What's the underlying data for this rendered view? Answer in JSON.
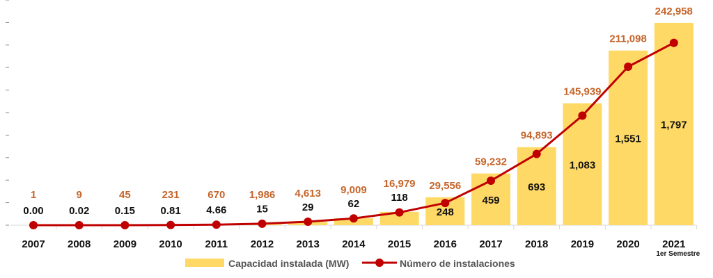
{
  "chart_data": {
    "type": "bar+line",
    "categories": [
      "2007",
      "2008",
      "2009",
      "2010",
      "2011",
      "2012",
      "2013",
      "2014",
      "2015",
      "2016",
      "2017",
      "2018",
      "2019",
      "2020",
      "2021"
    ],
    "category_sublabels": {
      "2021": "1er Semestre"
    },
    "series": [
      {
        "name": "Capacidad instalada (MW)",
        "type": "bar",
        "color": "#ffd966",
        "values": [
          0.0,
          0.02,
          0.15,
          0.81,
          4.66,
          15,
          29,
          62,
          118,
          248,
          459,
          693,
          1083,
          1551,
          1797
        ],
        "labels": [
          "0.00",
          "0.02",
          "0.15",
          "0.81",
          "4.66",
          "15",
          "29",
          "62",
          "118",
          "248",
          "459",
          "693",
          "1,083",
          "1,551",
          "1,797"
        ],
        "label_color": "#111111",
        "ylim": [
          0,
          2000
        ]
      },
      {
        "name": "Número de instalaciones",
        "type": "line",
        "color": "#c00000",
        "values": [
          1,
          9,
          45,
          231,
          670,
          1986,
          4613,
          9009,
          16979,
          29556,
          59232,
          94893,
          145939,
          211098,
          242958
        ],
        "labels": [
          "1",
          "9",
          "45",
          "231",
          "670",
          "1,986",
          "4,613",
          "9,009",
          "16,979",
          "29,556",
          "59,232",
          "94,893",
          "145,939",
          "211,098",
          "242,958"
        ],
        "label_color": "#c5652a",
        "ylim": [
          0,
          300000
        ]
      }
    ],
    "grid": false,
    "legend": "bottom"
  }
}
